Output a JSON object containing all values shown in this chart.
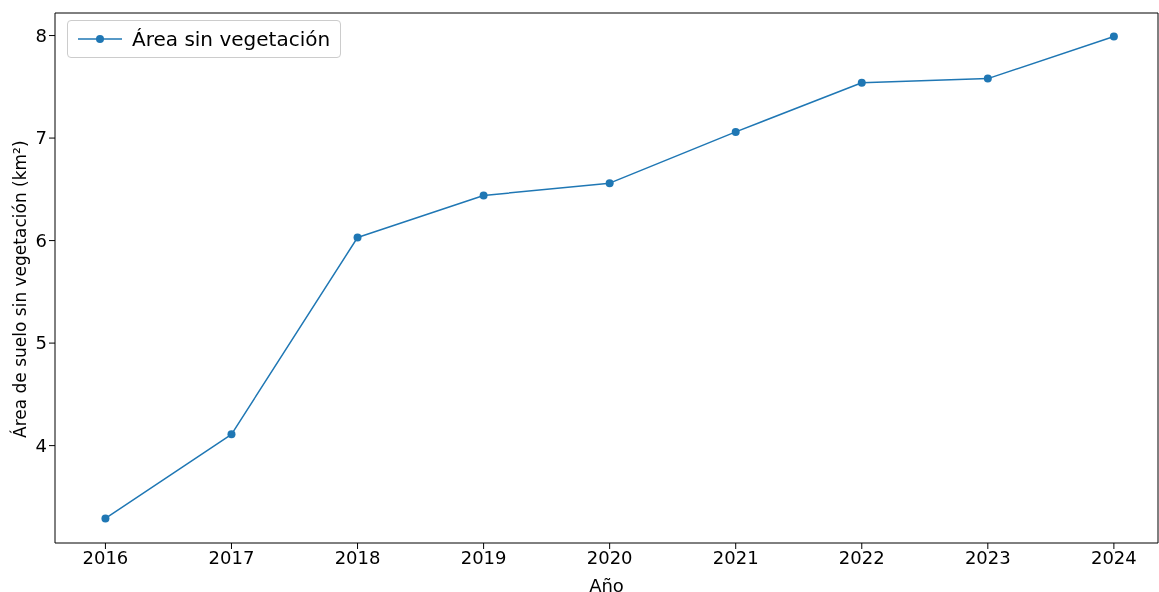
{
  "chart_data": {
    "type": "line",
    "xlabel": "Año",
    "ylabel": "Área de suelo sin vegetación (km²)",
    "x": [
      2016,
      2017,
      2018,
      2019,
      2020,
      2021,
      2022,
      2023,
      2024
    ],
    "series": [
      {
        "name": "Área sin vegetación",
        "color": "#1f77b4",
        "values": [
          3.29,
          4.11,
          6.03,
          6.44,
          6.56,
          7.06,
          7.54,
          7.58,
          7.99
        ]
      }
    ],
    "xlim": [
      2015.6,
      2024.35
    ],
    "xticks": [
      2016,
      2017,
      2018,
      2019,
      2020,
      2021,
      2022,
      2023,
      2024
    ],
    "ylim": [
      3.05,
      8.22
    ],
    "yticks": [
      4,
      5,
      6,
      7,
      8
    ],
    "legend": "top left",
    "marker": "circle",
    "line_style": "solid"
  }
}
